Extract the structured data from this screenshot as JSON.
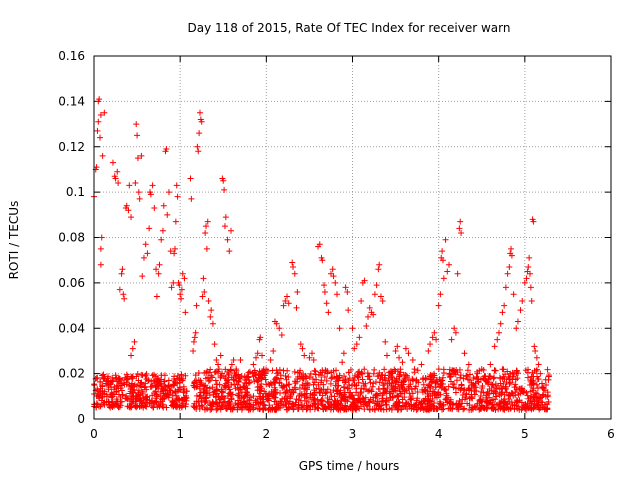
{
  "chart_data": {
    "type": "scatter",
    "title": "Day 118 of 2015, Rate Of TEC Index for receiver warn",
    "xlabel": "GPS time / hours",
    "ylabel": "ROTI / TECUs",
    "xlim": [
      0,
      6
    ],
    "ylim": [
      0,
      0.16
    ],
    "xticks": [
      0,
      1,
      2,
      3,
      4,
      5,
      6
    ],
    "xtick_labels": [
      "0",
      "1",
      "2",
      "3",
      "4",
      "5",
      "6"
    ],
    "yticks": [
      0,
      0.02,
      0.04,
      0.06,
      0.08,
      0.1,
      0.12,
      0.14,
      0.16
    ],
    "ytick_labels": [
      "0",
      "0.02",
      "0.04",
      "0.06",
      "0.08",
      "0.1",
      "0.12",
      "0.14",
      "0.16"
    ],
    "grid": true,
    "marker": "+",
    "color": "#ff0000",
    "series": [
      {
        "name": "ROTI",
        "baseline_band": {
          "x_start": 0.0,
          "x_end": 1.08,
          "y_low": 0.005,
          "y_high": 0.02
        },
        "baseline_band_2": {
          "x_start": 1.15,
          "x_end": 5.28,
          "y_low": 0.004,
          "y_high": 0.022
        },
        "points": [
          [
            0.0,
            0.098
          ],
          [
            0.02,
            0.11
          ],
          [
            0.03,
            0.111
          ],
          [
            0.04,
            0.127
          ],
          [
            0.05,
            0.131
          ],
          [
            0.05,
            0.14
          ],
          [
            0.06,
            0.141
          ],
          [
            0.07,
            0.124
          ],
          [
            0.08,
            0.134
          ],
          [
            0.08,
            0.075
          ],
          [
            0.08,
            0.068
          ],
          [
            0.09,
            0.08
          ],
          [
            0.1,
            0.116
          ],
          [
            0.12,
            0.135
          ],
          [
            0.22,
            0.113
          ],
          [
            0.24,
            0.107
          ],
          [
            0.25,
            0.106
          ],
          [
            0.27,
            0.109
          ],
          [
            0.28,
            0.104
          ],
          [
            0.3,
            0.057
          ],
          [
            0.32,
            0.064
          ],
          [
            0.33,
            0.066
          ],
          [
            0.34,
            0.055
          ],
          [
            0.35,
            0.053
          ],
          [
            0.37,
            0.093
          ],
          [
            0.38,
            0.094
          ],
          [
            0.4,
            0.092
          ],
          [
            0.41,
            0.103
          ],
          [
            0.43,
            0.089
          ],
          [
            0.43,
            0.028
          ],
          [
            0.45,
            0.031
          ],
          [
            0.47,
            0.034
          ],
          [
            0.48,
            0.104
          ],
          [
            0.49,
            0.13
          ],
          [
            0.5,
            0.125
          ],
          [
            0.51,
            0.115
          ],
          [
            0.52,
            0.1
          ],
          [
            0.53,
            0.097
          ],
          [
            0.55,
            0.116
          ],
          [
            0.56,
            0.063
          ],
          [
            0.58,
            0.071
          ],
          [
            0.6,
            0.077
          ],
          [
            0.62,
            0.073
          ],
          [
            0.64,
            0.084
          ],
          [
            0.65,
            0.1
          ],
          [
            0.66,
            0.099
          ],
          [
            0.68,
            0.103
          ],
          [
            0.7,
            0.093
          ],
          [
            0.72,
            0.066
          ],
          [
            0.73,
            0.054
          ],
          [
            0.75,
            0.064
          ],
          [
            0.76,
            0.068
          ],
          [
            0.78,
            0.079
          ],
          [
            0.8,
            0.083
          ],
          [
            0.81,
            0.094
          ],
          [
            0.83,
            0.118
          ],
          [
            0.84,
            0.119
          ],
          [
            0.85,
            0.09
          ],
          [
            0.87,
            0.1
          ],
          [
            0.89,
            0.074
          ],
          [
            0.9,
            0.058
          ],
          [
            0.92,
            0.06
          ],
          [
            0.93,
            0.073
          ],
          [
            0.94,
            0.075
          ],
          [
            0.95,
            0.087
          ],
          [
            0.96,
            0.103
          ],
          [
            0.97,
            0.098
          ],
          [
            0.98,
            0.06
          ],
          [
            0.99,
            0.059
          ],
          [
            1.0,
            0.055
          ],
          [
            1.01,
            0.053
          ],
          [
            1.02,
            0.057
          ],
          [
            1.03,
            0.064
          ],
          [
            1.05,
            0.062
          ],
          [
            1.06,
            0.047
          ],
          [
            1.12,
            0.106
          ],
          [
            1.13,
            0.097
          ],
          [
            1.15,
            0.03
          ],
          [
            1.16,
            0.034
          ],
          [
            1.17,
            0.036
          ],
          [
            1.18,
            0.038
          ],
          [
            1.19,
            0.05
          ],
          [
            1.2,
            0.12
          ],
          [
            1.21,
            0.118
          ],
          [
            1.22,
            0.126
          ],
          [
            1.23,
            0.135
          ],
          [
            1.24,
            0.132
          ],
          [
            1.25,
            0.131
          ],
          [
            1.26,
            0.054
          ],
          [
            1.27,
            0.062
          ],
          [
            1.28,
            0.056
          ],
          [
            1.29,
            0.082
          ],
          [
            1.3,
            0.085
          ],
          [
            1.31,
            0.075
          ],
          [
            1.32,
            0.087
          ],
          [
            1.33,
            0.052
          ],
          [
            1.35,
            0.045
          ],
          [
            1.36,
            0.048
          ],
          [
            1.38,
            0.042
          ],
          [
            1.4,
            0.033
          ],
          [
            1.42,
            0.026
          ],
          [
            1.44,
            0.024
          ],
          [
            1.45,
            0.022
          ],
          [
            1.47,
            0.028
          ],
          [
            1.49,
            0.106
          ],
          [
            1.5,
            0.105
          ],
          [
            1.51,
            0.101
          ],
          [
            1.52,
            0.085
          ],
          [
            1.53,
            0.089
          ],
          [
            1.55,
            0.079
          ],
          [
            1.57,
            0.074
          ],
          [
            1.59,
            0.083
          ],
          [
            1.6,
            0.024
          ],
          [
            1.62,
            0.026
          ],
          [
            1.65,
            0.022
          ],
          [
            1.7,
            0.026
          ],
          [
            1.85,
            0.024
          ],
          [
            1.88,
            0.027
          ],
          [
            1.9,
            0.029
          ],
          [
            1.92,
            0.035
          ],
          [
            1.93,
            0.036
          ],
          [
            1.95,
            0.028
          ],
          [
            1.97,
            0.022
          ],
          [
            1.98,
            0.02
          ],
          [
            2.05,
            0.026
          ],
          [
            2.08,
            0.03
          ],
          [
            2.1,
            0.043
          ],
          [
            2.12,
            0.042
          ],
          [
            2.15,
            0.04
          ],
          [
            2.18,
            0.037
          ],
          [
            2.2,
            0.05
          ],
          [
            2.22,
            0.052
          ],
          [
            2.24,
            0.054
          ],
          [
            2.26,
            0.051
          ],
          [
            2.3,
            0.069
          ],
          [
            2.31,
            0.067
          ],
          [
            2.33,
            0.064
          ],
          [
            2.35,
            0.049
          ],
          [
            2.36,
            0.056
          ],
          [
            2.4,
            0.033
          ],
          [
            2.42,
            0.031
          ],
          [
            2.44,
            0.028
          ],
          [
            2.5,
            0.027
          ],
          [
            2.53,
            0.029
          ],
          [
            2.55,
            0.026
          ],
          [
            2.6,
            0.076
          ],
          [
            2.62,
            0.077
          ],
          [
            2.64,
            0.071
          ],
          [
            2.65,
            0.07
          ],
          [
            2.67,
            0.059
          ],
          [
            2.68,
            0.056
          ],
          [
            2.7,
            0.051
          ],
          [
            2.72,
            0.047
          ],
          [
            2.75,
            0.064
          ],
          [
            2.77,
            0.066
          ],
          [
            2.78,
            0.063
          ],
          [
            2.8,
            0.06
          ],
          [
            2.82,
            0.055
          ],
          [
            2.85,
            0.04
          ],
          [
            2.88,
            0.025
          ],
          [
            2.9,
            0.029
          ],
          [
            2.92,
            0.058
          ],
          [
            2.94,
            0.056
          ],
          [
            2.95,
            0.048
          ],
          [
            3.0,
            0.04
          ],
          [
            3.02,
            0.031
          ],
          [
            3.05,
            0.033
          ],
          [
            3.08,
            0.036
          ],
          [
            3.1,
            0.052
          ],
          [
            3.12,
            0.06
          ],
          [
            3.14,
            0.061
          ],
          [
            3.16,
            0.041
          ],
          [
            3.18,
            0.045
          ],
          [
            3.2,
            0.049
          ],
          [
            3.22,
            0.047
          ],
          [
            3.24,
            0.046
          ],
          [
            3.26,
            0.055
          ],
          [
            3.28,
            0.059
          ],
          [
            3.3,
            0.066
          ],
          [
            3.31,
            0.068
          ],
          [
            3.33,
            0.054
          ],
          [
            3.35,
            0.052
          ],
          [
            3.38,
            0.034
          ],
          [
            3.4,
            0.028
          ],
          [
            3.45,
            0.02
          ],
          [
            3.5,
            0.03
          ],
          [
            3.52,
            0.032
          ],
          [
            3.54,
            0.027
          ],
          [
            3.58,
            0.025
          ],
          [
            3.62,
            0.031
          ],
          [
            3.65,
            0.029
          ],
          [
            3.7,
            0.026
          ],
          [
            3.72,
            0.022
          ],
          [
            3.8,
            0.024
          ],
          [
            3.82,
            0.018
          ],
          [
            3.88,
            0.03
          ],
          [
            3.9,
            0.033
          ],
          [
            3.93,
            0.036
          ],
          [
            3.95,
            0.038
          ],
          [
            3.97,
            0.035
          ],
          [
            4.0,
            0.05
          ],
          [
            4.02,
            0.055
          ],
          [
            4.03,
            0.071
          ],
          [
            4.04,
            0.074
          ],
          [
            4.05,
            0.07
          ],
          [
            4.06,
            0.062
          ],
          [
            4.08,
            0.079
          ],
          [
            4.1,
            0.065
          ],
          [
            4.12,
            0.068
          ],
          [
            4.15,
            0.035
          ],
          [
            4.18,
            0.04
          ],
          [
            4.2,
            0.038
          ],
          [
            4.22,
            0.064
          ],
          [
            4.24,
            0.084
          ],
          [
            4.25,
            0.087
          ],
          [
            4.26,
            0.082
          ],
          [
            4.3,
            0.029
          ],
          [
            4.35,
            0.024
          ],
          [
            4.45,
            0.02
          ],
          [
            4.5,
            0.022
          ],
          [
            4.6,
            0.024
          ],
          [
            4.65,
            0.032
          ],
          [
            4.68,
            0.035
          ],
          [
            4.7,
            0.038
          ],
          [
            4.72,
            0.042
          ],
          [
            4.74,
            0.047
          ],
          [
            4.76,
            0.05
          ],
          [
            4.78,
            0.058
          ],
          [
            4.8,
            0.064
          ],
          [
            4.82,
            0.067
          ],
          [
            4.83,
            0.073
          ],
          [
            4.84,
            0.075
          ],
          [
            4.85,
            0.072
          ],
          [
            4.87,
            0.055
          ],
          [
            4.9,
            0.04
          ],
          [
            4.92,
            0.043
          ],
          [
            4.95,
            0.048
          ],
          [
            4.97,
            0.052
          ],
          [
            5.0,
            0.06
          ],
          [
            5.02,
            0.062
          ],
          [
            5.03,
            0.065
          ],
          [
            5.04,
            0.067
          ],
          [
            5.05,
            0.071
          ],
          [
            5.06,
            0.064
          ],
          [
            5.07,
            0.058
          ],
          [
            5.08,
            0.052
          ],
          [
            5.09,
            0.088
          ],
          [
            5.1,
            0.087
          ],
          [
            5.11,
            0.032
          ],
          [
            5.12,
            0.03
          ],
          [
            5.14,
            0.027
          ],
          [
            5.16,
            0.024
          ],
          [
            5.18,
            0.02
          ]
        ]
      }
    ]
  }
}
